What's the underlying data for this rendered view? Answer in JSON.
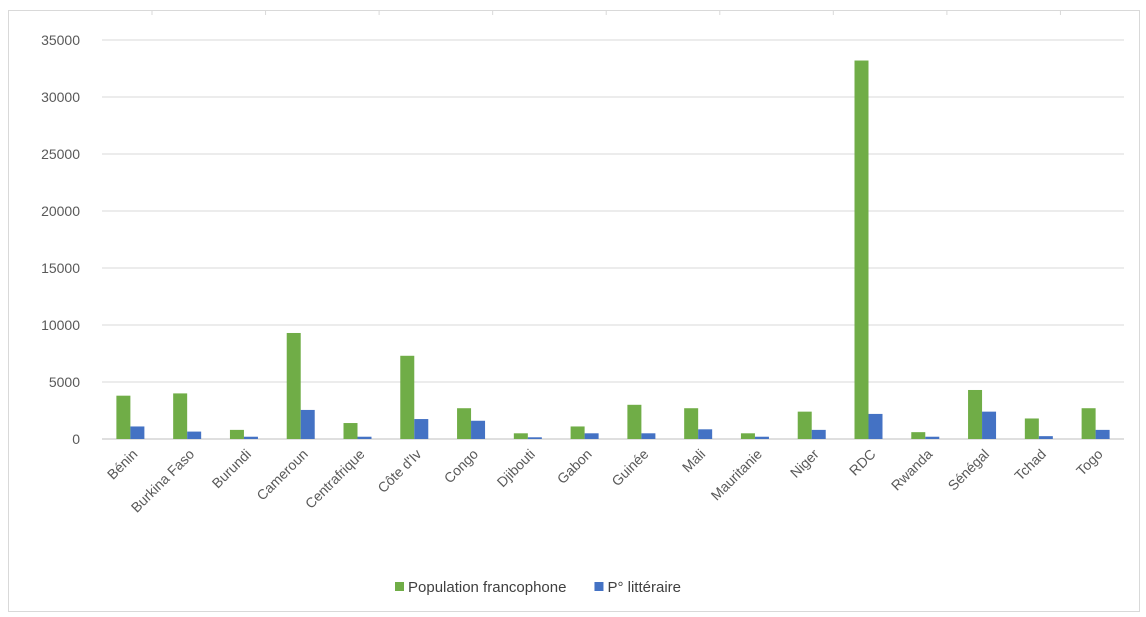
{
  "chart_data": {
    "type": "bar",
    "title": "",
    "xlabel": "",
    "ylabel": "",
    "ylim": [
      0,
      35000
    ],
    "yticks": [
      0,
      5000,
      10000,
      15000,
      20000,
      25000,
      30000,
      35000
    ],
    "ytick_labels": [
      "0",
      "5000",
      "10000",
      "15000",
      "20000",
      "25000",
      "30000",
      "35000"
    ],
    "grid": true,
    "legend_position": "bottom",
    "categories": [
      "Bénin",
      "Burkina Faso",
      "Burundi",
      "Cameroun",
      "Centrafrique",
      "Côte d'Iv",
      "Congo",
      "Djibouti",
      "Gabon",
      "Guinée",
      "Mali",
      "Mauritanie",
      "Niger",
      "RDC",
      "Rwanda",
      "Sénégal",
      "Tchad",
      "Togo"
    ],
    "series": [
      {
        "name": "Population francophone",
        "color": "#70ad47",
        "values": [
          3800,
          4000,
          800,
          9300,
          1400,
          7300,
          2700,
          500,
          1100,
          3000,
          2700,
          500,
          2400,
          33200,
          600,
          4300,
          1800,
          2700
        ]
      },
      {
        "name": "P° littéraire",
        "color": "#4472c4",
        "values": [
          1100,
          650,
          200,
          2550,
          200,
          1750,
          1600,
          150,
          500,
          500,
          850,
          200,
          800,
          2200,
          200,
          2400,
          250,
          800
        ]
      }
    ]
  }
}
